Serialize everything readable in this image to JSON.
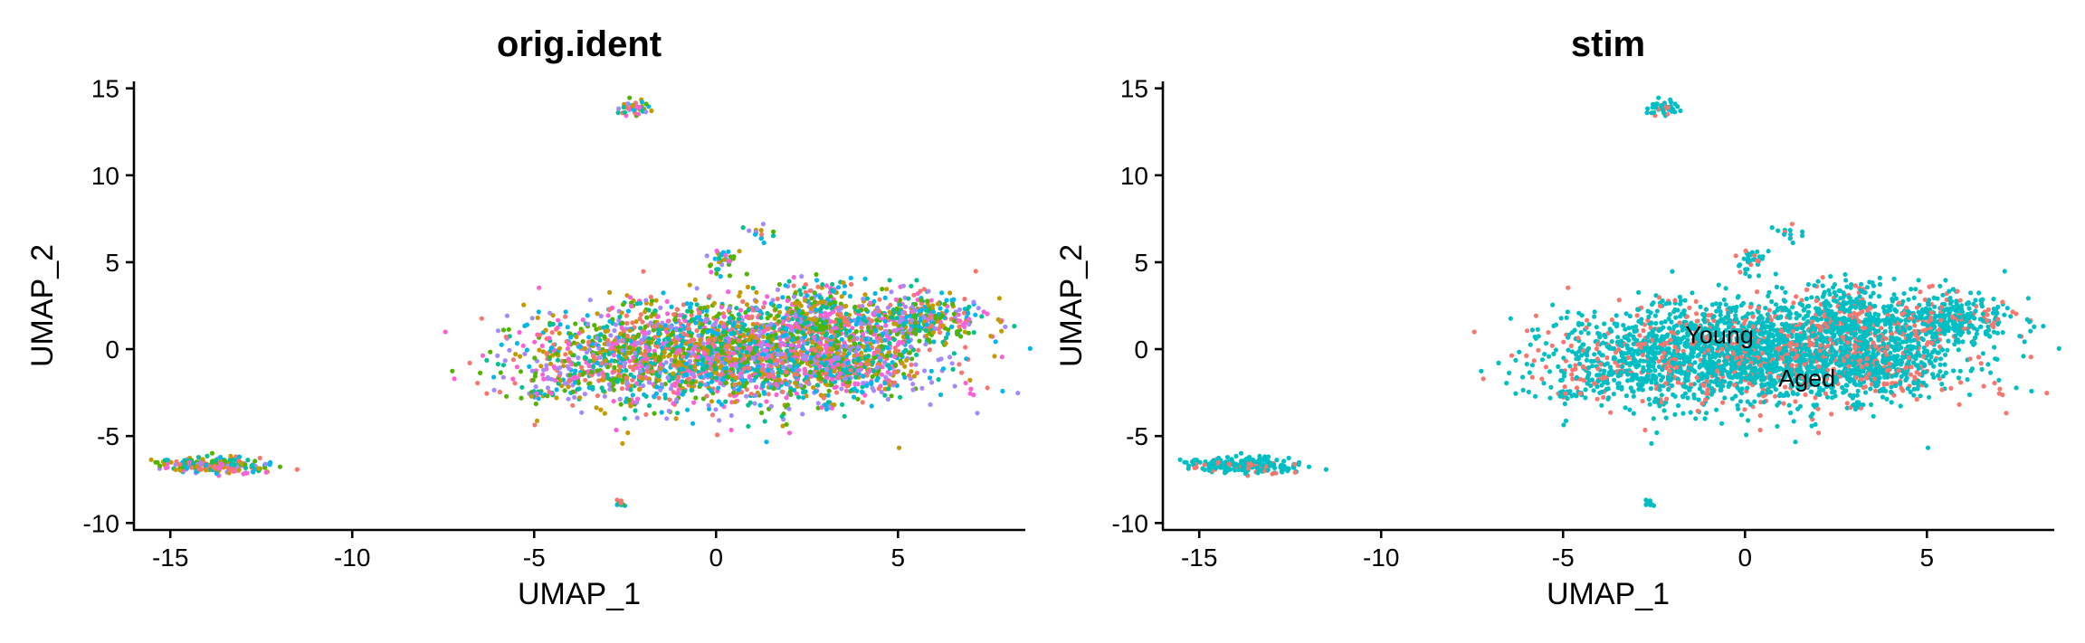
{
  "chart_data": [
    {
      "type": "scatter",
      "title": "orig.ident",
      "xlabel": "UMAP_1",
      "ylabel": "UMAP_2",
      "xlim": [
        -16,
        8.5
      ],
      "ylim": [
        -10.4,
        15.4
      ],
      "xticks": [
        -15,
        -10,
        -5,
        0,
        5
      ],
      "yticks": [
        -10,
        -5,
        0,
        5,
        10,
        15
      ],
      "xtick_labels": [
        "-15",
        "-10",
        "-5",
        "0",
        "5"
      ],
      "ytick_labels": [
        "-10",
        "-5",
        "0",
        "5",
        "10",
        "15"
      ],
      "grid": false,
      "legend": "none",
      "point_colors": [
        "#F8766D",
        "#C49A00",
        "#53B400",
        "#00C094",
        "#00B6EB",
        "#A58AFF",
        "#FB61D7"
      ],
      "series": [
        {
          "cx": 0.2,
          "cy": -0.3,
          "sx": 2.6,
          "sy": 1.5,
          "n": 2600
        },
        {
          "cx": 2.8,
          "cy": 2.0,
          "sx": 0.7,
          "sy": 1.0,
          "n": 300
        },
        {
          "cx": 3.8,
          "cy": -1.0,
          "sx": 0.7,
          "sy": 0.9,
          "n": 260
        },
        {
          "cx": 5.7,
          "cy": 1.8,
          "sx": 0.8,
          "sy": 0.7,
          "n": 320
        },
        {
          "cx": -3.8,
          "cy": -1.6,
          "sx": 0.6,
          "sy": 0.5,
          "n": 50
        },
        {
          "cx": -13.8,
          "cy": -6.7,
          "sx": 0.75,
          "sy": 0.22,
          "n": 220
        },
        {
          "cx": -2.2,
          "cy": 13.9,
          "sx": 0.25,
          "sy": 0.2,
          "n": 45
        },
        {
          "cx": 1.2,
          "cy": 6.6,
          "sx": 0.25,
          "sy": 0.2,
          "n": 14
        },
        {
          "cx": 0.2,
          "cy": 5.2,
          "sx": 0.25,
          "sy": 0.45,
          "n": 35
        },
        {
          "cx": -4.9,
          "cy": -2.6,
          "sx": 0.2,
          "sy": 0.12,
          "n": 18
        },
        {
          "cx": -2.6,
          "cy": -8.9,
          "sx": 0.08,
          "sy": 0.1,
          "n": 10
        },
        {
          "cx": 3.2,
          "cy": -3.3,
          "sx": 0.2,
          "sy": 0.15,
          "n": 10
        }
      ]
    },
    {
      "type": "scatter",
      "title": "stim",
      "xlabel": "UMAP_1",
      "ylabel": "UMAP_2",
      "xlim": [
        -16,
        8.5
      ],
      "ylim": [
        -10.4,
        15.4
      ],
      "xticks": [
        -15,
        -10,
        -5,
        0,
        5
      ],
      "yticks": [
        -10,
        -5,
        0,
        5,
        10,
        15
      ],
      "xtick_labels": [
        "-15",
        "-10",
        "-5",
        "0",
        "5"
      ],
      "ytick_labels": [
        "-10",
        "-5",
        "0",
        "5",
        "10",
        "15"
      ],
      "grid": false,
      "legend": "none",
      "groups": [
        {
          "name": "Young",
          "color": "#00BFC4",
          "label_at": [
            -0.7,
            0.8
          ]
        },
        {
          "name": "Aged",
          "color": "#F8766D",
          "label_at": [
            1.7,
            -1.7
          ]
        }
      ],
      "point_colors": [
        "#00BFC4",
        "#F8766D"
      ],
      "series": [
        {
          "cx": 0.2,
          "cy": -0.3,
          "sx": 2.6,
          "sy": 1.5,
          "n": 2600
        },
        {
          "cx": 2.8,
          "cy": 2.0,
          "sx": 0.7,
          "sy": 1.0,
          "n": 300
        },
        {
          "cx": 3.8,
          "cy": -1.0,
          "sx": 0.7,
          "sy": 0.9,
          "n": 260
        },
        {
          "cx": 5.7,
          "cy": 1.8,
          "sx": 0.8,
          "sy": 0.7,
          "n": 320
        },
        {
          "cx": -3.8,
          "cy": -1.6,
          "sx": 0.6,
          "sy": 0.5,
          "n": 50
        },
        {
          "cx": -13.8,
          "cy": -6.7,
          "sx": 0.75,
          "sy": 0.22,
          "n": 220
        },
        {
          "cx": -2.2,
          "cy": 13.9,
          "sx": 0.25,
          "sy": 0.2,
          "n": 45
        },
        {
          "cx": 1.2,
          "cy": 6.6,
          "sx": 0.25,
          "sy": 0.2,
          "n": 14
        },
        {
          "cx": 0.2,
          "cy": 5.2,
          "sx": 0.25,
          "sy": 0.45,
          "n": 35
        },
        {
          "cx": -4.9,
          "cy": -2.6,
          "sx": 0.2,
          "sy": 0.12,
          "n": 18
        },
        {
          "cx": -2.6,
          "cy": -8.9,
          "sx": 0.08,
          "sy": 0.1,
          "n": 10
        },
        {
          "cx": 3.2,
          "cy": -3.3,
          "sx": 0.2,
          "sy": 0.15,
          "n": 10
        }
      ]
    }
  ]
}
